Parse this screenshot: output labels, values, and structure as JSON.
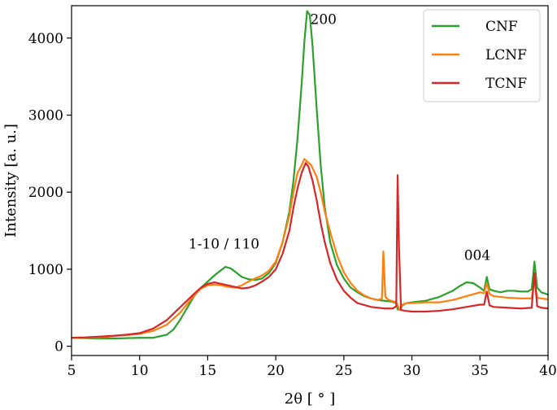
{
  "chart_data": {
    "type": "line",
    "title": "",
    "xlabel": "2θ [ ° ]",
    "ylabel": "Intensity [a. u.]",
    "xlim": [
      5,
      40
    ],
    "ylim": [
      -120,
      4420
    ],
    "xticks": [
      5,
      10,
      15,
      20,
      25,
      30,
      35,
      40
    ],
    "yticks": [
      0,
      1000,
      2000,
      3000,
      4000
    ],
    "grid": false,
    "legend": "top-right",
    "annotations": [
      {
        "text": "200",
        "x": 23.5,
        "y": 4180
      },
      {
        "text": "1-10 / 110",
        "x": 16.2,
        "y": 1270
      },
      {
        "text": "004",
        "x": 34.8,
        "y": 1120
      }
    ],
    "series": [
      {
        "name": "CNF",
        "color": "#2ca02c",
        "points": [
          [
            5,
            110
          ],
          [
            6,
            105
          ],
          [
            7,
            100
          ],
          [
            8,
            100
          ],
          [
            9,
            105
          ],
          [
            10,
            110
          ],
          [
            11,
            110
          ],
          [
            12,
            150
          ],
          [
            12.5,
            220
          ],
          [
            13,
            350
          ],
          [
            13.5,
            500
          ],
          [
            14,
            650
          ],
          [
            14.5,
            760
          ],
          [
            15,
            840
          ],
          [
            15.5,
            920
          ],
          [
            16,
            990
          ],
          [
            16.3,
            1030
          ],
          [
            16.7,
            1010
          ],
          [
            17,
            970
          ],
          [
            17.5,
            900
          ],
          [
            18,
            870
          ],
          [
            18.5,
            860
          ],
          [
            19,
            880
          ],
          [
            19.5,
            950
          ],
          [
            20,
            1080
          ],
          [
            20.5,
            1350
          ],
          [
            21,
            1750
          ],
          [
            21.3,
            2150
          ],
          [
            21.6,
            2700
          ],
          [
            21.9,
            3400
          ],
          [
            22.1,
            3950
          ],
          [
            22.3,
            4350
          ],
          [
            22.5,
            4300
          ],
          [
            22.7,
            3900
          ],
          [
            23,
            3100
          ],
          [
            23.3,
            2350
          ],
          [
            23.6,
            1800
          ],
          [
            24,
            1350
          ],
          [
            24.5,
            1050
          ],
          [
            25,
            880
          ],
          [
            25.5,
            760
          ],
          [
            26,
            700
          ],
          [
            26.5,
            650
          ],
          [
            27,
            620
          ],
          [
            27.5,
            600
          ],
          [
            28,
            590
          ],
          [
            28.5,
            580
          ],
          [
            28.85,
            560
          ],
          [
            28.95,
            480
          ],
          [
            29.1,
            470
          ],
          [
            29.3,
            530
          ],
          [
            29.6,
            560
          ],
          [
            30,
            570
          ],
          [
            31,
            590
          ],
          [
            32,
            640
          ],
          [
            33,
            720
          ],
          [
            33.5,
            780
          ],
          [
            34,
            830
          ],
          [
            34.5,
            820
          ],
          [
            35,
            760
          ],
          [
            35.3,
            720
          ],
          [
            35.5,
            900
          ],
          [
            35.7,
            740
          ],
          [
            36,
            720
          ],
          [
            36.5,
            700
          ],
          [
            37,
            720
          ],
          [
            37.5,
            720
          ],
          [
            38,
            710
          ],
          [
            38.5,
            710
          ],
          [
            38.8,
            740
          ],
          [
            39,
            1100
          ],
          [
            39.2,
            760
          ],
          [
            39.5,
            700
          ],
          [
            40,
            670
          ]
        ]
      },
      {
        "name": "LCNF",
        "color": "#ff7f0e",
        "points": [
          [
            5,
            110
          ],
          [
            6,
            110
          ],
          [
            7,
            115
          ],
          [
            8,
            130
          ],
          [
            9,
            145
          ],
          [
            10,
            160
          ],
          [
            11,
            200
          ],
          [
            12,
            280
          ],
          [
            13,
            440
          ],
          [
            14,
            660
          ],
          [
            14.5,
            750
          ],
          [
            15,
            790
          ],
          [
            15.5,
            800
          ],
          [
            16,
            790
          ],
          [
            16.5,
            770
          ],
          [
            17,
            760
          ],
          [
            17.5,
            790
          ],
          [
            18,
            840
          ],
          [
            18.5,
            880
          ],
          [
            19,
            920
          ],
          [
            19.5,
            980
          ],
          [
            20,
            1100
          ],
          [
            20.5,
            1350
          ],
          [
            21,
            1700
          ],
          [
            21.3,
            2000
          ],
          [
            21.6,
            2250
          ],
          [
            21.9,
            2350
          ],
          [
            22.1,
            2430
          ],
          [
            22.3,
            2400
          ],
          [
            22.6,
            2350
          ],
          [
            23,
            2200
          ],
          [
            23.3,
            2000
          ],
          [
            23.6,
            1750
          ],
          [
            24,
            1480
          ],
          [
            24.5,
            1180
          ],
          [
            25,
            960
          ],
          [
            25.5,
            820
          ],
          [
            26,
            720
          ],
          [
            26.5,
            660
          ],
          [
            27,
            620
          ],
          [
            27.5,
            600
          ],
          [
            27.8,
            620
          ],
          [
            27.9,
            1230
          ],
          [
            28.05,
            640
          ],
          [
            28.3,
            600
          ],
          [
            28.85,
            570
          ],
          [
            29.1,
            470
          ],
          [
            29.3,
            540
          ],
          [
            29.6,
            560
          ],
          [
            30,
            560
          ],
          [
            31,
            570
          ],
          [
            32,
            570
          ],
          [
            33,
            600
          ],
          [
            34,
            650
          ],
          [
            35,
            700
          ],
          [
            35.3,
            690
          ],
          [
            35.5,
            820
          ],
          [
            35.7,
            680
          ],
          [
            36,
            650
          ],
          [
            37,
            630
          ],
          [
            38,
            620
          ],
          [
            38.8,
            620
          ],
          [
            39,
            860
          ],
          [
            39.2,
            630
          ],
          [
            39.5,
            620
          ],
          [
            40,
            610
          ]
        ]
      },
      {
        "name": "TCNF",
        "color": "#d62728",
        "points": [
          [
            5,
            110
          ],
          [
            6,
            115
          ],
          [
            7,
            125
          ],
          [
            8,
            135
          ],
          [
            9,
            150
          ],
          [
            10,
            170
          ],
          [
            11,
            230
          ],
          [
            12,
            340
          ],
          [
            13,
            510
          ],
          [
            14,
            680
          ],
          [
            14.5,
            760
          ],
          [
            15,
            810
          ],
          [
            15.5,
            830
          ],
          [
            16,
            810
          ],
          [
            16.5,
            790
          ],
          [
            17,
            770
          ],
          [
            17.5,
            750
          ],
          [
            18,
            760
          ],
          [
            18.5,
            790
          ],
          [
            19,
            840
          ],
          [
            19.5,
            900
          ],
          [
            20,
            1000
          ],
          [
            20.5,
            1200
          ],
          [
            21,
            1500
          ],
          [
            21.3,
            1800
          ],
          [
            21.6,
            2050
          ],
          [
            21.9,
            2250
          ],
          [
            22.2,
            2380
          ],
          [
            22.4,
            2330
          ],
          [
            22.7,
            2150
          ],
          [
            23,
            1900
          ],
          [
            23.3,
            1600
          ],
          [
            23.6,
            1350
          ],
          [
            24,
            1080
          ],
          [
            24.5,
            860
          ],
          [
            25,
            720
          ],
          [
            25.5,
            630
          ],
          [
            26,
            560
          ],
          [
            27,
            510
          ],
          [
            28,
            490
          ],
          [
            28.6,
            490
          ],
          [
            28.85,
            520
          ],
          [
            28.95,
            2220
          ],
          [
            29.05,
            1300
          ],
          [
            29.2,
            470
          ],
          [
            29.5,
            460
          ],
          [
            30,
            450
          ],
          [
            31,
            450
          ],
          [
            32,
            460
          ],
          [
            33,
            480
          ],
          [
            34,
            510
          ],
          [
            35,
            540
          ],
          [
            35.3,
            540
          ],
          [
            35.5,
            710
          ],
          [
            35.7,
            530
          ],
          [
            36,
            510
          ],
          [
            37,
            500
          ],
          [
            38,
            490
          ],
          [
            38.8,
            500
          ],
          [
            39,
            950
          ],
          [
            39.2,
            520
          ],
          [
            39.5,
            500
          ],
          [
            40,
            490
          ]
        ]
      }
    ]
  }
}
